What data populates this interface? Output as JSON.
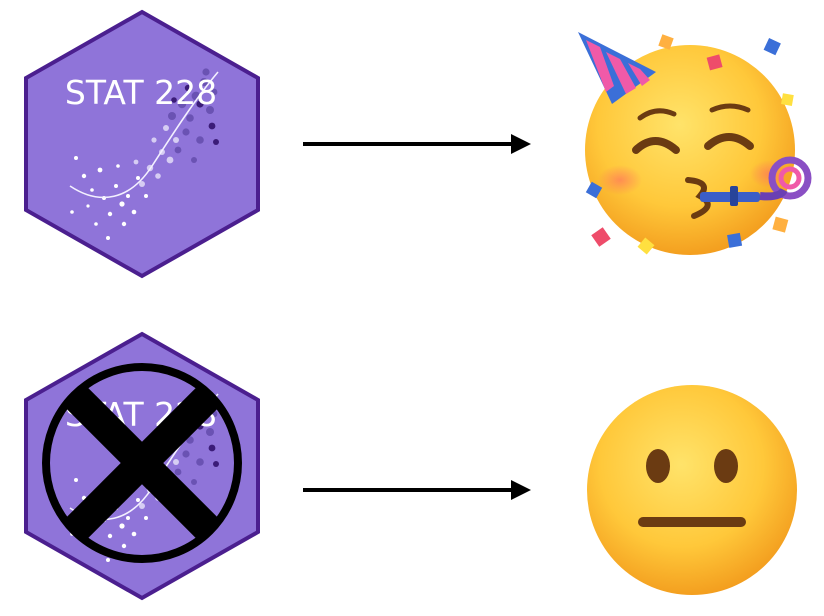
{
  "badge": {
    "label": "STAT 228",
    "fill_color": "#8f74d9",
    "border_color": "#4b1f8f"
  },
  "rows": [
    {
      "badge_crossed_out": false,
      "arrow_color": "#000000",
      "emoji": "partying-face"
    },
    {
      "badge_crossed_out": true,
      "arrow_color": "#000000",
      "emoji": "neutral-face"
    }
  ],
  "cross_color": "#000000"
}
